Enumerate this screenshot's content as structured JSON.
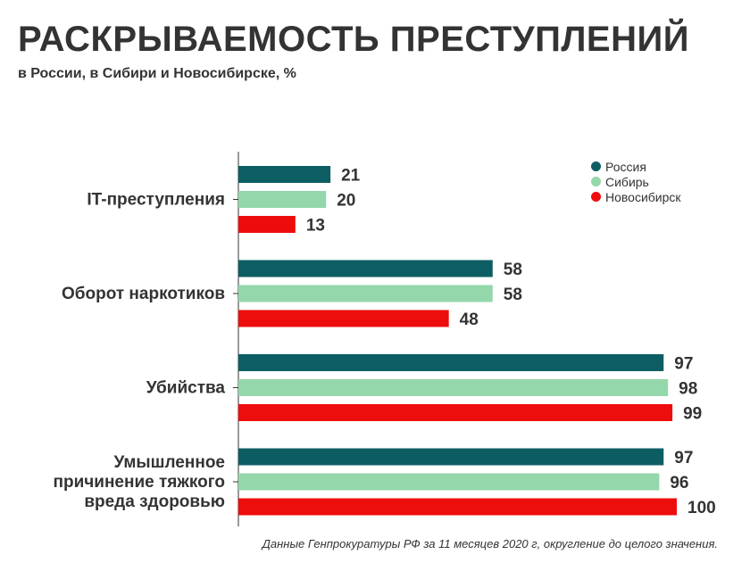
{
  "header": {
    "title": "РАСКРЫВАЕМОСТЬ ПРЕСТУПЛЕНИЙ",
    "subtitle": "в России, в Сибири и Новосибирске, %"
  },
  "footer": {
    "source": "Данные Генпрокуратуры РФ за 11 месяцев 2020 г, округление до целого значения."
  },
  "legend": {
    "items": [
      {
        "label": "Россия",
        "color": "#0d5e63"
      },
      {
        "label": "Сибирь",
        "color": "#93d7ab"
      },
      {
        "label": "Новосибирск",
        "color": "#ee0d0d"
      }
    ]
  },
  "chart_data": {
    "type": "bar",
    "orientation": "horizontal",
    "title": "РАСКРЫВАЕМОСТЬ ПРЕСТУПЛЕНИЙ",
    "subtitle": "в России, в Сибири и Новосибирске, %",
    "categories": [
      [
        "IT-преступления"
      ],
      [
        "Оборот наркотиков"
      ],
      [
        "Убийства"
      ],
      [
        "Умышленное",
        "причинение тяжкого",
        "вреда здоровью"
      ]
    ],
    "series": [
      {
        "name": "Россия",
        "color": "#0d5e63",
        "values": [
          21,
          58,
          97,
          97
        ]
      },
      {
        "name": "Сибирь",
        "color": "#93d7ab",
        "values": [
          20,
          58,
          98,
          96
        ]
      },
      {
        "name": "Новосибирск",
        "color": "#ee0d0d",
        "values": [
          13,
          48,
          99,
          100
        ]
      }
    ],
    "xlim": [
      0,
      100
    ],
    "grid": false,
    "data_labels": true,
    "legend_position": "top-right"
  }
}
